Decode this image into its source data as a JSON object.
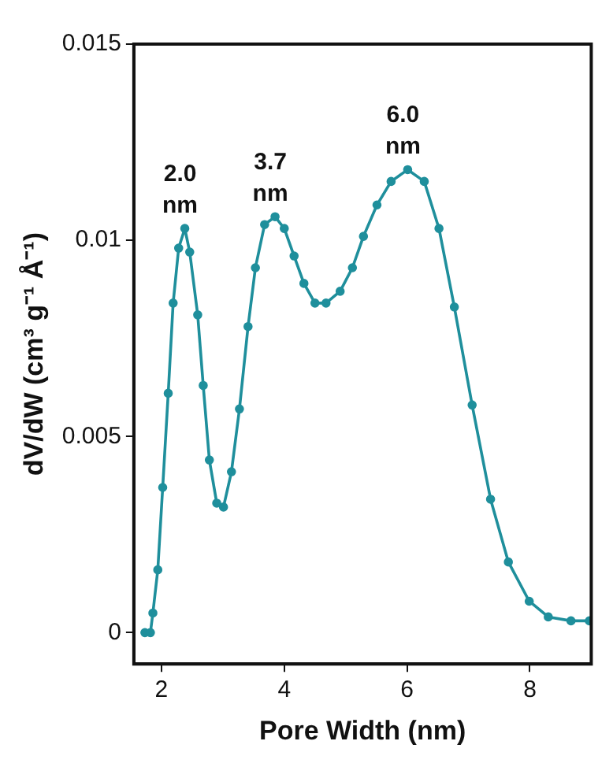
{
  "chart_data": {
    "type": "line",
    "xlabel": "Pore Width (nm)",
    "ylabel": "dV/dW (cm³ g⁻¹ Å⁻¹)",
    "xlim": [
      1.55,
      9.0
    ],
    "xticks": [
      2,
      4,
      6,
      8
    ],
    "ylim": [
      -0.0008,
      0.015
    ],
    "yticks": [
      0,
      0.005,
      0.01,
      0.015
    ],
    "grid": false,
    "legend": false,
    "marker": "circle",
    "line_style": "solid",
    "series": [
      {
        "color": "#1f8f9c",
        "x": [
          1.73,
          1.82,
          1.86,
          1.94,
          2.02,
          2.11,
          2.19,
          2.28,
          2.38,
          2.46,
          2.59,
          2.68,
          2.78,
          2.9,
          3.01,
          3.14,
          3.27,
          3.41,
          3.53,
          3.68,
          3.85,
          4.0,
          4.16,
          4.32,
          4.5,
          4.68,
          4.91,
          5.11,
          5.29,
          5.51,
          5.74,
          6.01,
          6.28,
          6.52,
          6.77,
          7.06,
          7.36,
          7.65,
          7.99,
          8.3,
          8.67,
          8.97
        ],
        "values": [
          0,
          0,
          0.0005,
          0.0016,
          0.0037,
          0.0061,
          0.0084,
          0.0098,
          0.0103,
          0.0097,
          0.0081,
          0.0063,
          0.0044,
          0.0033,
          0.0032,
          0.0041,
          0.0057,
          0.0078,
          0.0093,
          0.0104,
          0.0106,
          0.0103,
          0.0096,
          0.0089,
          0.0084,
          0.0084,
          0.0087,
          0.0093,
          0.0101,
          0.0109,
          0.0115,
          0.0118,
          0.0115,
          0.0103,
          0.0083,
          0.0058,
          0.0034,
          0.0018,
          0.0008,
          0.0004,
          0.0003,
          0.0003
        ]
      }
    ],
    "annotations": [
      {
        "text": "2.0 nm",
        "x": 2.38,
        "y": 0.0103
      },
      {
        "text": "3.7 nm",
        "x": 3.85,
        "y": 0.0106
      },
      {
        "text": "6.0 nm",
        "x": 6.01,
        "y": 0.0118
      }
    ]
  }
}
